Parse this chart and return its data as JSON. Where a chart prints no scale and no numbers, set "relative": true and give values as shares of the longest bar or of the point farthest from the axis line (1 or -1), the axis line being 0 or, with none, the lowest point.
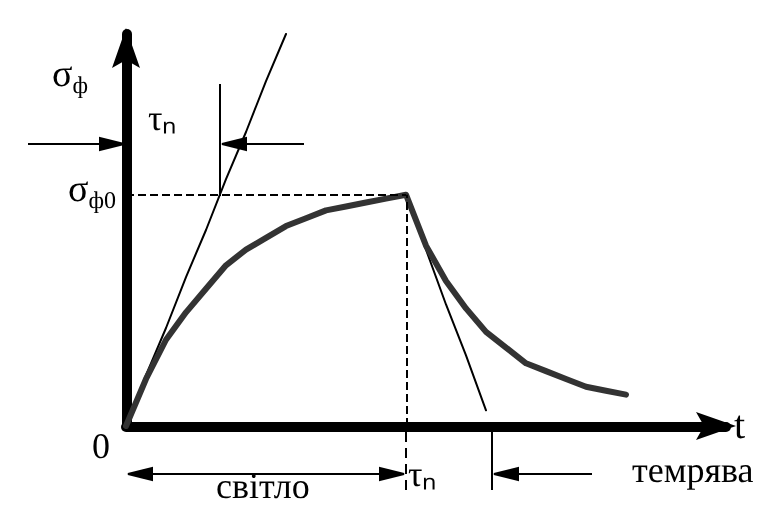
{
  "chart_data": {
    "type": "line",
    "relative": true,
    "xlabel": "t",
    "ylabel": "σ$_{ф}$",
    "categories": [
      null,
      null,
      null,
      null,
      null,
      null,
      null,
      null,
      null,
      null,
      null,
      null,
      null,
      null,
      null,
      null,
      null,
      null,
      null,
      null,
      null,
      null,
      null,
      null,
      null,
      null,
      null,
      null,
      null,
      null,
      null
    ],
    "series": [
      {
        "color": "#333333",
        "values": [
          0,
          0.12,
          0.22,
          0.29,
          0.35,
          0.41,
          0.45,
          0.48,
          0.51,
          0.53,
          0.55,
          0.56,
          0.57,
          0.58,
          0.59,
          0.46,
          0.37,
          0.3,
          0.24,
          0.2,
          0.16,
          0.14,
          0.12,
          0.1,
          0.09,
          0.08,
          null,
          null,
          null,
          null,
          null
        ]
      },
      {
        "color": "#000000",
        "values": [
          0,
          0.13,
          0.25,
          0.38,
          0.5,
          0.63,
          0.75,
          0.88,
          1,
          null,
          null,
          null,
          null,
          null,
          null,
          null,
          null,
          null,
          null,
          null,
          null,
          null,
          null,
          null,
          null,
          null,
          null,
          null,
          null,
          null,
          null
        ]
      },
      {
        "color": "#000000",
        "values": [
          null,
          null,
          null,
          null,
          null,
          null,
          null,
          null,
          null,
          null,
          null,
          null,
          null,
          null,
          0.59,
          0.45,
          0.31,
          0.18,
          0.04,
          null,
          null,
          null,
          null,
          null,
          null,
          null,
          null,
          null,
          null,
          null,
          null
        ]
      }
    ],
    "ref_lines": [
      {
        "axis": "y",
        "value": 0.59,
        "label": "σ$_{ф0}$",
        "line_style": "dashed"
      }
    ],
    "annotations": [
      "0",
      "τₙ",
      "світло",
      "τₙ",
      "темрява"
    ],
    "grid": false,
    "marker": "none",
    "line_style": "solid"
  }
}
